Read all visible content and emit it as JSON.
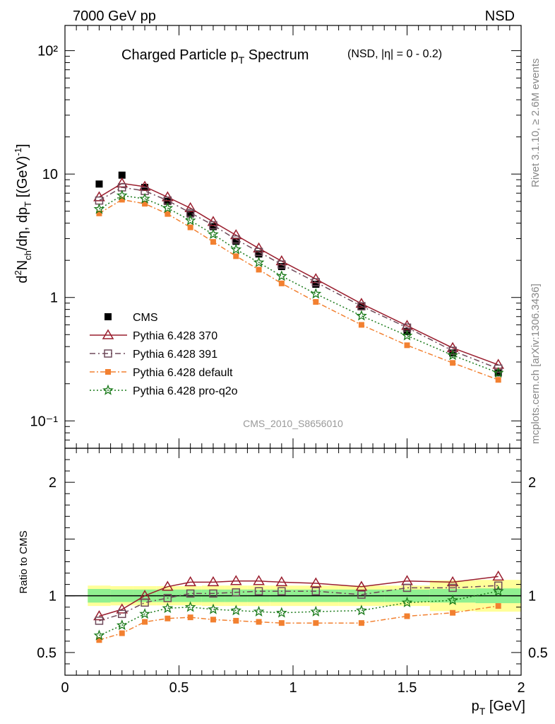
{
  "header": {
    "left": "7000 GeV pp",
    "right": "NSD"
  },
  "title": {
    "main": "Charged Particle p",
    "sub": "T",
    "tail": " Spectrum",
    "note": "(NSD, |η| =    0 - 0.2)"
  },
  "side": {
    "rivet": "Rivet 3.1.10, ≥ 2.6M events",
    "mcplots": "mcplots.cern.ch [arXiv:1306.3436]"
  },
  "analysis_id": "CMS_2010_S8656010",
  "colors": {
    "cms": "#000000",
    "p370": "#9a1e2e",
    "p391": "#6e4a5a",
    "pdefault": "#f28030",
    "pq2o": "#1a7a1a",
    "band_inner": "#90f090",
    "band_outer": "#ffff99"
  },
  "chart_data": [
    {
      "type": "scatter",
      "title": "Charged Particle pT Spectrum (NSD, |η| = 0 - 0.2)",
      "xlabel": "p_T [GeV]",
      "ylabel": "d²N_ch/dη, dp_T [(GeV)⁻¹]",
      "xlim": [
        0,
        2
      ],
      "ylim": [
        0.06,
        160
      ],
      "yscale": "log",
      "ytick_labels": [
        "10⁻¹",
        "1",
        "10",
        "10²"
      ],
      "legend_position": "lower-left",
      "x": [
        0.15,
        0.25,
        0.35,
        0.45,
        0.55,
        0.65,
        0.75,
        0.85,
        0.95,
        1.1,
        1.3,
        1.5,
        1.7,
        1.9
      ],
      "series": [
        {
          "name": "CMS",
          "values": [
            8.3,
            9.8,
            7.8,
            6.0,
            4.75,
            3.75,
            2.85,
            2.25,
            1.78,
            1.28,
            0.84,
            0.53,
            0.355,
            0.245
          ]
        },
        {
          "name": "Pythia 6.428 370",
          "values": [
            6.5,
            8.4,
            7.9,
            6.5,
            5.3,
            4.1,
            3.2,
            2.5,
            1.97,
            1.41,
            0.89,
            0.59,
            0.39,
            0.285
          ]
        },
        {
          "name": "Pythia 6.428 391",
          "values": [
            6.1,
            7.8,
            7.3,
            6.1,
            4.85,
            3.85,
            2.95,
            2.34,
            1.85,
            1.33,
            0.85,
            0.57,
            0.37,
            0.265
          ]
        },
        {
          "name": "Pythia 6.428 default",
          "values": [
            4.8,
            6.2,
            5.75,
            4.75,
            3.7,
            2.82,
            2.16,
            1.68,
            1.3,
            0.92,
            0.6,
            0.41,
            0.295,
            0.215
          ]
        },
        {
          "name": "Pythia 6.428 pro-q2o",
          "values": [
            5.2,
            6.7,
            6.3,
            5.3,
            4.2,
            3.25,
            2.45,
            1.92,
            1.49,
            1.07,
            0.71,
            0.49,
            0.34,
            0.245
          ]
        }
      ]
    },
    {
      "type": "line",
      "ylabel": "Ratio to CMS",
      "xlabel": "p_T [GeV]",
      "xlim": [
        0,
        2
      ],
      "ylim": [
        0.3,
        2.3
      ],
      "ytick_labels": [
        "0.5",
        "1",
        "2"
      ],
      "xtick_labels": [
        "0",
        "0.5",
        "1",
        "1.5",
        "2"
      ],
      "x": [
        0.15,
        0.25,
        0.35,
        0.45,
        0.55,
        0.65,
        0.75,
        0.85,
        0.95,
        1.1,
        1.3,
        1.5,
        1.7,
        1.9
      ],
      "band_edges": [
        0.1,
        0.2,
        0.3,
        0.4,
        0.5,
        0.6,
        0.7,
        0.8,
        0.9,
        1.0,
        1.2,
        1.4,
        1.6,
        1.8,
        2.0
      ],
      "band_inner": [
        0.06,
        0.055,
        0.055,
        0.055,
        0.055,
        0.055,
        0.055,
        0.055,
        0.055,
        0.055,
        0.055,
        0.055,
        0.06,
        0.065
      ],
      "band_outer": [
        0.09,
        0.085,
        0.085,
        0.085,
        0.085,
        0.09,
        0.09,
        0.09,
        0.09,
        0.09,
        0.09,
        0.09,
        0.135,
        0.14
      ],
      "series": [
        {
          "name": "Pythia 6.428 370",
          "values": [
            0.82,
            0.88,
            1.0,
            1.08,
            1.12,
            1.12,
            1.13,
            1.13,
            1.12,
            1.11,
            1.08,
            1.13,
            1.12,
            1.17
          ]
        },
        {
          "name": "Pythia 6.428 391",
          "values": [
            0.78,
            0.84,
            0.94,
            0.98,
            1.02,
            1.02,
            1.03,
            1.04,
            1.04,
            1.04,
            1.01,
            1.07,
            1.07,
            1.09
          ]
        },
        {
          "name": "Pythia 6.428 default",
          "values": [
            0.61,
            0.67,
            0.77,
            0.8,
            0.81,
            0.79,
            0.78,
            0.77,
            0.76,
            0.76,
            0.76,
            0.82,
            0.85,
            0.91
          ]
        },
        {
          "name": "Pythia 6.428 pro-q2o",
          "values": [
            0.65,
            0.74,
            0.84,
            0.89,
            0.9,
            0.88,
            0.87,
            0.86,
            0.85,
            0.86,
            0.87,
            0.94,
            0.96,
            1.04
          ]
        }
      ]
    }
  ]
}
